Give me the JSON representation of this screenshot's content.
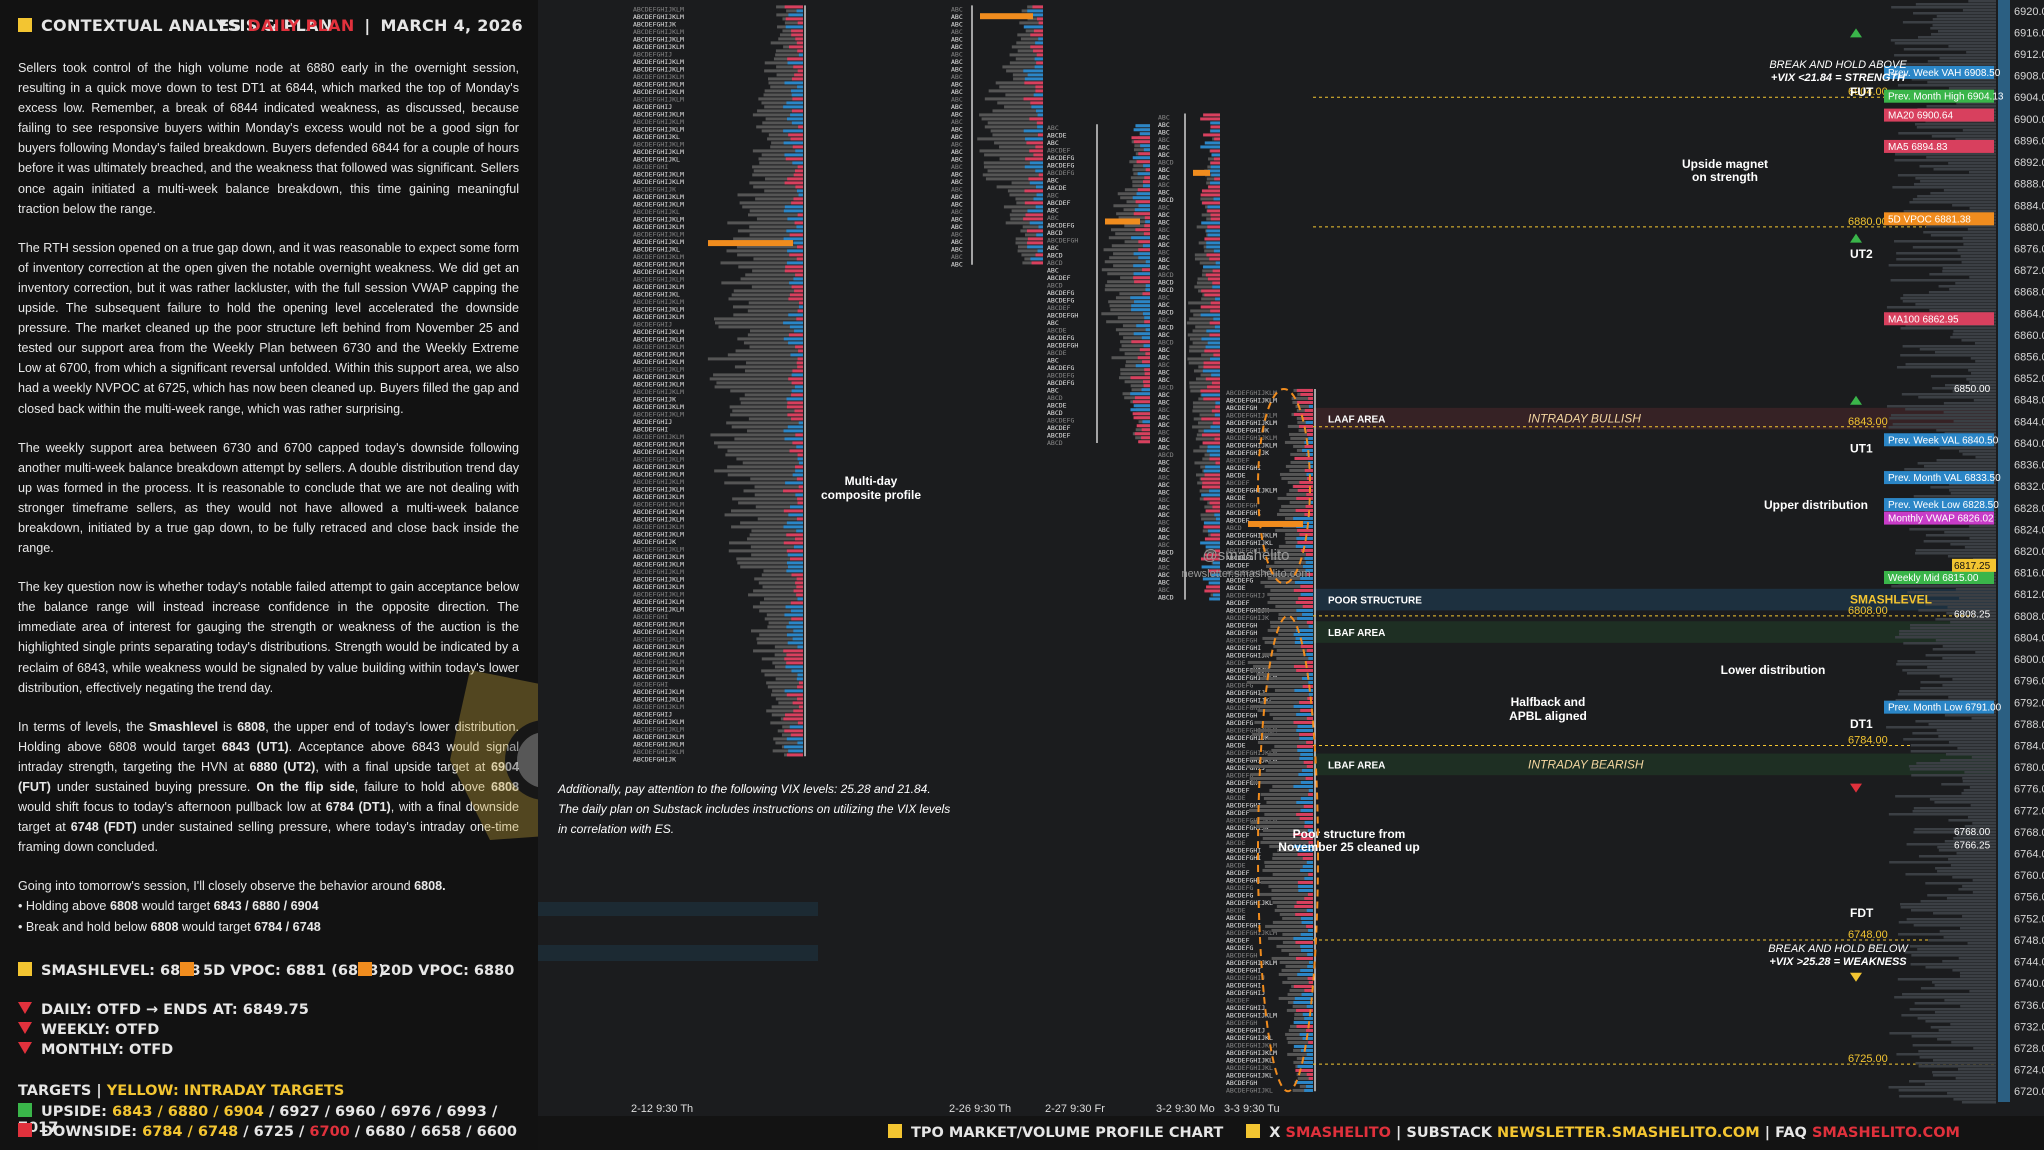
{
  "header": {
    "left_title": "CONTEXTUAL ANALYSIS & PLAN",
    "symbol": "ES",
    "plan_label": "DAILY PLAN",
    "separator": "|",
    "date": "MARCH 4, 2026"
  },
  "analysis": {
    "p1": "Sellers took control of the high volume node at 6880 early in the overnight session, resulting in a quick move down to test DT1 at 6844, which marked the top of Monday's excess low. Remember, a break of 6844 indicated weakness, as discussed, because failing to see responsive buyers within Monday's excess would not be a good sign for buyers following Monday's failed breakdown. Buyers defended 6844 for a couple of hours before it was ultimately breached, and the weakness that followed was significant. Sellers once again initiated a multi-week balance breakdown, this time gaining meaningful traction below the range.",
    "p2": "The RTH session opened on a true gap down, and it was reasonable to expect some form of inventory correction at the open given the notable overnight weakness. We did get an inventory correction, but it was rather lackluster, with the full session VWAP capping the upside. The subsequent failure to hold the opening level accelerated the downside pressure. The market cleaned up the poor structure left behind from November 25 and tested our support area from the Weekly Plan between 6730 and the Weekly Extreme Low at 6700, from which a significant reversal unfolded. Within this support area, we also had a weekly NVPOC at 6725, which has now been cleaned up. Buyers filled the gap and closed back within the multi-week range, which was rather surprising.",
    "p3": "The weekly support area between 6730 and 6700 capped today's downside following another multi-week balance breakdown attempt by sellers. A double distribution trend day up was formed in the process. It is reasonable to conclude that we are not dealing with stronger timeframe sellers, as they would not have allowed a multi-week balance breakdown, initiated by a true gap down, to be fully retraced and close back inside the range.",
    "p4": "The key question now is whether today's notable failed attempt to gain acceptance below the balance range will instead increase confidence in the opposite direction. The immediate area of interest for gauging the strength or weakness of the auction is the highlighted single prints separating today's distributions. Strength would be indicated by a reclaim of 6843, while weakness would be signaled by value building within today's lower distribution, effectively negating the trend day.",
    "p5_a": "In terms of levels, the ",
    "p5_b": "Smashlevel",
    "p5_c": " is ",
    "p5_d": "6808",
    "p5_e": ", the upper end of today's lower distribution. Holding above 6808 would target ",
    "p5_f": "6843 (UT1)",
    "p5_g": ". Acceptance above 6843 would signal intraday strength, targeting the HVN at ",
    "p5_h": "6880 (UT2)",
    "p5_i": ", with a final upside target at ",
    "p5_j": "6904 (FUT)",
    "p5_k": " under sustained buying pressure. ",
    "p5_l": "On the flip side",
    "p5_m": ", failure to hold above ",
    "p5_n": "6808",
    "p5_o": " would shift focus to today's afternoon pullback low at ",
    "p5_p": "6784 (DT1)",
    "p5_q": ", with a final downside target at ",
    "p5_r": "6748 (FDT)",
    "p5_s": " under sustained selling pressure, where today's intraday one-time framing down concluded.",
    "p6_a": "Going into tomorrow's session, I'll closely observe the behavior around ",
    "p6_b": "6808.",
    "p7_a": "• Holding above ",
    "p7_b": "6808",
    "p7_c": " would target ",
    "p7_d": "6843 / 6880 / 6904",
    "p8_a": "• Break and hold below ",
    "p8_b": "6808",
    "p8_c": " would target ",
    "p8_d": "6784 / 6748"
  },
  "levels_legend": {
    "smashlevel": "SMASHLEVEL: 6808",
    "vpoc5d": "5D VPOC: 6881 (6888)",
    "vpoc20d": "20D VPOC: 6880"
  },
  "status": {
    "daily": "DAILY: OTFD",
    "arrow": "→",
    "ends": "ENDS AT: 6849.75",
    "weekly": "WEEKLY: OTFD",
    "monthly": "MONTHLY: OTFD"
  },
  "targets": {
    "title": "TARGETS",
    "sep": "|",
    "yellow_note": "YELLOW: INTRADAY TARGETS",
    "upside_label": "UPSIDE:",
    "upside_yellow": "6843 / 6880 / 6904",
    "upside_rest": " / 6927 / 6960 / 6976 / 6993 / 7017",
    "downside_label": "DOWNSIDE:",
    "downside_yellow": "6784 / 6748",
    "downside_mid": " / 6725 / ",
    "downside_red": "6700",
    "downside_rest": " / 6680 / 6658 / 6600"
  },
  "footer": {
    "chart_label": "TPO MARKET/VOLUME PROFILE CHART",
    "x": "X",
    "x_handle": "SMASHELITO",
    "sep": "|",
    "substack": "SUBSTACK",
    "substack_url": "NEWSLETTER.SMASHELITO.COM",
    "faq": "FAQ",
    "faq_url": "SMASHELITO.COM"
  },
  "colors": {
    "yellow": "#f3c531",
    "orange": "#f08c1e",
    "red": "#e0313c",
    "green": "#3ab54a",
    "blue_bar": "#2b86c7",
    "pink_bar": "#d8405e"
  },
  "chart_data": {
    "type": "tpo-volume-profile",
    "ylim": [
      6718,
      6922
    ],
    "y_ticks": [
      6920,
      6916,
      6912,
      6908,
      6904,
      6900,
      6896,
      6892,
      6888,
      6884,
      6880,
      6876,
      6872,
      6868,
      6864,
      6860,
      6856,
      6852,
      6848,
      6844,
      6840,
      6836,
      6832,
      6828,
      6824,
      6820,
      6816,
      6812,
      6808,
      6804,
      6800,
      6796,
      6792,
      6788,
      6784,
      6780,
      6776,
      6772,
      6768,
      6764,
      6760,
      6756,
      6752,
      6748,
      6744,
      6740,
      6736,
      6732,
      6728,
      6724,
      6720
    ],
    "tick_labels": [
      "6920.00",
      "6916.00",
      "6912.00",
      "6908.00",
      "6904.00",
      "6900.00",
      "6896.00",
      "6892.00",
      "6888.00",
      "6884.00",
      "6880.00",
      "6876.00",
      "6872.00",
      "6868.00",
      "6864.00",
      "6860.00",
      "6856.00",
      "6852.00",
      "6848.00",
      "6844.00",
      "6840.00",
      "6836.00",
      "6832.00",
      "6828.00",
      "6824.00",
      "6820.00",
      "6816.00",
      "6812.00",
      "6808.00",
      "6804.00",
      "6800.00",
      "6796.00",
      "6792.00",
      "6788.00",
      "6784.00",
      "6780.00",
      "6776.00",
      "6772.00",
      "6768.00",
      "6764.00",
      "6760.00",
      "6756.00",
      "6752.00",
      "6748.00",
      "6744.00",
      "6740.00",
      "6736.00",
      "6732.00",
      "6728.00",
      "6724.00",
      "6720.00"
    ],
    "sessions": [
      {
        "label": "2-12  9:30 Th",
        "top": 6921,
        "bottom": 6782,
        "poc": 6877
      },
      {
        "label": "2-26  9:30 Th",
        "top": 6921,
        "bottom": 6873,
        "poc": 6919
      },
      {
        "label": "2-27  9:30 Fr",
        "top": 6899,
        "bottom": 6840,
        "poc": 6881
      },
      {
        "label": "3-2  9:30 Mo",
        "top": 6901,
        "bottom": 6811,
        "poc": 6890
      },
      {
        "label": "3-3  9:30 Tu",
        "top": 6850,
        "bottom": 6720,
        "poc": 6825
      }
    ],
    "level_lines": [
      {
        "label": "6904.00",
        "value": 6904,
        "color": "#f3c531"
      },
      {
        "label": "6880.00",
        "value": 6880,
        "color": "#f3c531"
      },
      {
        "label": "6843.00",
        "value": 6843,
        "color": "#f3c531"
      },
      {
        "label": "6808.00",
        "value": 6808,
        "color": "#f3c531"
      },
      {
        "label": "6784.00",
        "value": 6784,
        "color": "#f3c531"
      },
      {
        "label": "6748.00",
        "value": 6748,
        "color": "#f3c531"
      },
      {
        "label": "6725.00",
        "value": 6725,
        "color": "#f3c531"
      }
    ],
    "tags": [
      {
        "label": "Prev. Week VAH",
        "value": 6908.5,
        "color": "#2b86c7"
      },
      {
        "label": "Prev. Month High",
        "value": 6904.1,
        "color": "#3ab54a"
      },
      {
        "label": "MA20",
        "value": 6900.6,
        "color": "#d8405e"
      },
      {
        "label": "MA5",
        "value": 6894.8,
        "color": "#d8405e"
      },
      {
        "label": "5D VPOC",
        "value": 6881.4,
        "color": "#f08c1e"
      },
      {
        "label": "MA100",
        "value": 6862.9,
        "color": "#d8405e"
      },
      {
        "label": "Prev. Week VAL",
        "value": 6840.5,
        "color": "#2b86c7"
      },
      {
        "label": "Prev. Month VAL",
        "value": 6833.5,
        "color": "#2b86c7"
      },
      {
        "label": "Prev. Week Low",
        "value": 6828.5,
        "color": "#2b86c7"
      },
      {
        "label": "Monthly VWAP",
        "value": 6826.0,
        "color": "#c83cc8"
      },
      {
        "label": "Weekly Mid",
        "value": 6815.0,
        "color": "#3ab54a"
      },
      {
        "label": "Prev. Month Low",
        "value": 6791.0,
        "color": "#2b86c7"
      }
    ],
    "tag_values": {
      "Prev. Week VAH": "6908.50",
      "Prev. Month High": "6904.13",
      "MA20": "6900.64",
      "MA5": "6894.83",
      "5D VPOC": "6881.38",
      "MA100": "6862.95",
      "Prev. Week VAL": "6840.50",
      "Prev. Month VAL": "6833.50",
      "Prev. Week Low": "6828.50",
      "Monthly VWAP": "6826.02",
      "Weekly Mid": "6815.00",
      "Prev. Month Low": "6791.00"
    },
    "extra_prices": {
      "high_mark": "6850.00",
      "close_mark": "6817.25",
      "smash_mark": "6808.25",
      "low_marks": [
        "6768.00",
        "6766.25"
      ]
    },
    "target_labels": [
      {
        "label": "FUT",
        "value": 6905
      },
      {
        "label": "UT2",
        "value": 6875
      },
      {
        "label": "UT1",
        "value": 6839
      },
      {
        "label": "SMASHLEVEL",
        "value": 6811
      },
      {
        "label": "DT1",
        "value": 6788
      },
      {
        "label": "FDT",
        "value": 6753
      }
    ],
    "zones": [
      {
        "label": "LAAF AREA",
        "top": 6846.5,
        "bottom": 6842.5,
        "note": "INTRADAY BULLISH",
        "color": "#3a2326"
      },
      {
        "label": "POOR STRUCTURE",
        "top": 6813,
        "bottom": 6809,
        "note": "",
        "color": "#1e3342"
      },
      {
        "label": "LBAF AREA",
        "top": 6807,
        "bottom": 6803,
        "note": "",
        "color": "#1f3223"
      },
      {
        "label": "LBAF AREA",
        "top": 6782.5,
        "bottom": 6778.5,
        "note": "INTRADAY BEARISH",
        "color": "#1f3223"
      }
    ],
    "annotations": {
      "break_above_1": "BREAK AND HOLD ABOVE",
      "break_above_2": "+VIX <21.84 = STRENGTH",
      "break_below_1": "BREAK AND HOLD BELOW",
      "break_below_2": "+VIX >25.28 = WEAKNESS",
      "magnet": "Upside magnet",
      "magnet2": "on strength",
      "upper_dist": "Upper distribution",
      "lower_dist": "Lower distribution",
      "halfback": "Halfback and",
      "halfback2": "APBL aligned",
      "poor_struct": "Poor structure from",
      "poor_struct2": "November 25 cleaned up",
      "composite": "Multi-day",
      "composite2": "composite profile",
      "handle": "@smashelito",
      "site": "newsletter.smashelito.com",
      "vix_note_1": "Additionally, pay attention to the following VIX levels: 25.28 and 21.84.",
      "vix_note_2": "The daily plan on Substack includes instructions on utilizing the VIX levels",
      "vix_note_3": "in correlation with ES."
    }
  }
}
